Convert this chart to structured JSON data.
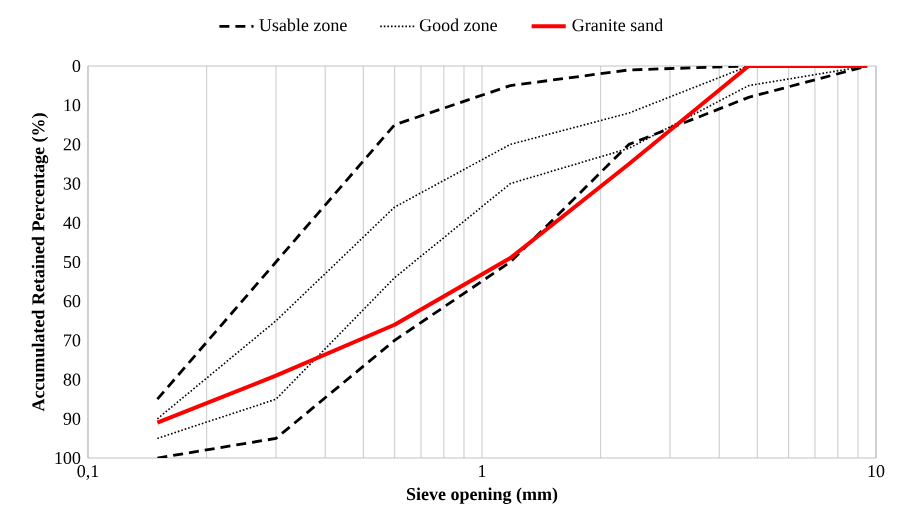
{
  "chart_data": {
    "type": "line",
    "xlabel": "Sieve opening (mm)",
    "ylabel": "Accumulated Retained Percentage (%)",
    "x": [
      0.15,
      0.3,
      0.6,
      1.18,
      2.36,
      4.75,
      9.5
    ],
    "series": [
      {
        "name": "Usable zone",
        "color": "#000000",
        "line_style": "dashed",
        "values": [
          85,
          50,
          15,
          5,
          1,
          0,
          0
        ]
      },
      {
        "color": "#000000",
        "line_style": "dashed",
        "values": [
          100,
          95,
          70,
          50,
          20,
          8,
          0
        ]
      },
      {
        "name": "Good zone",
        "color": "#000000",
        "line_style": "dotted",
        "values": [
          90,
          65,
          36,
          20,
          12,
          0,
          0
        ]
      },
      {
        "color": "#000000",
        "line_style": "dotted",
        "values": [
          95,
          85,
          54,
          30,
          21,
          5,
          0
        ]
      },
      {
        "name": "Granite sand",
        "color": "#ff0000",
        "line_style": "solid",
        "values": [
          91,
          79,
          66,
          49,
          25,
          0,
          0
        ]
      }
    ],
    "log": "x",
    "xlim": [
      0.1,
      10
    ],
    "xticks": [
      {
        "value": 0.1,
        "label": "0,1"
      },
      1,
      10
    ],
    "ylim": [
      100,
      0
    ],
    "yticks": [
      0,
      10,
      20,
      30,
      40,
      50,
      60,
      70,
      80,
      90,
      100
    ],
    "grid": "x",
    "legend": "top",
    "marker": "none"
  }
}
